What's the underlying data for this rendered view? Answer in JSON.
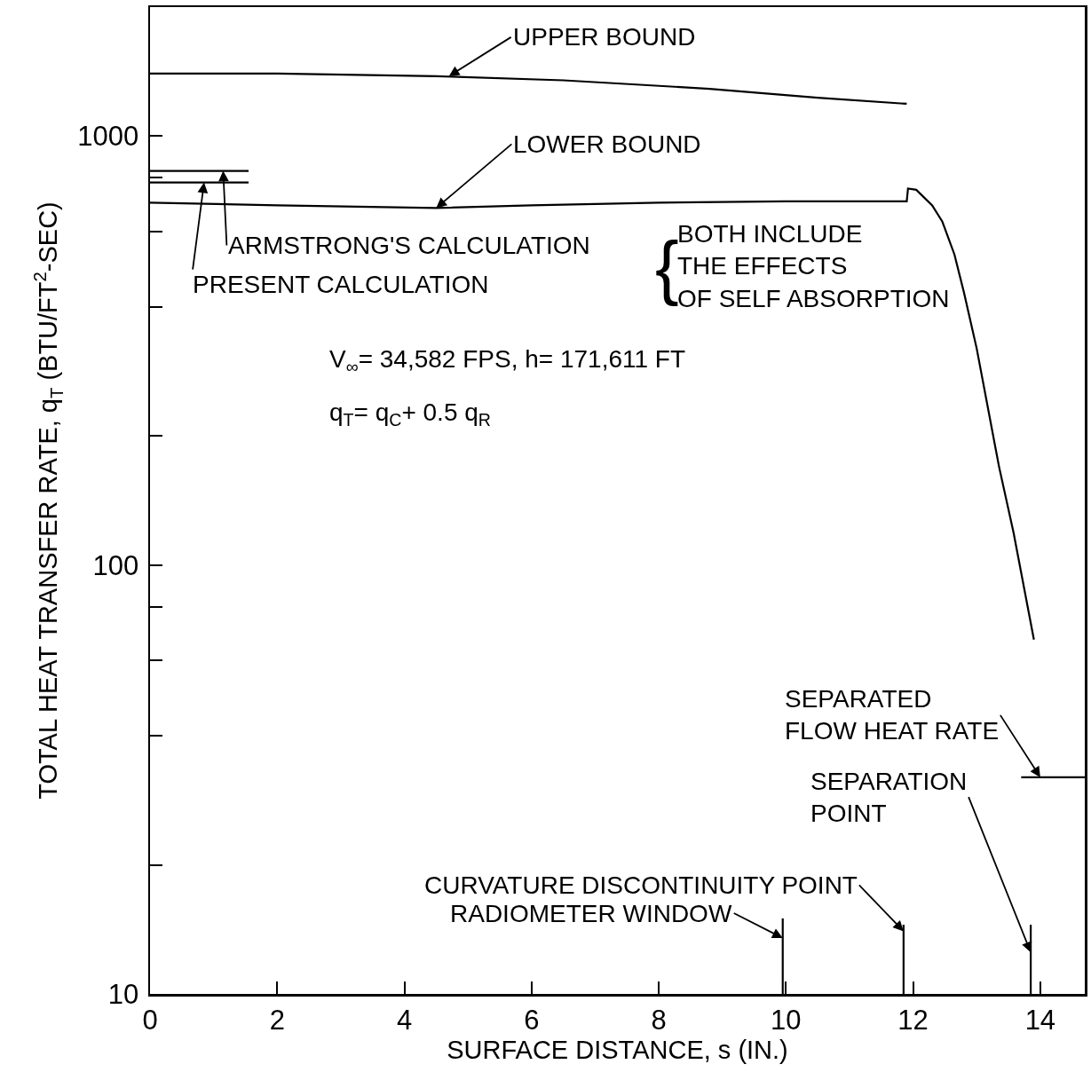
{
  "chart_data": {
    "type": "line",
    "xlabel": "SURFACE DISTANCE, s (IN.)",
    "ylabel": "TOTAL HEAT TRANSFER RATE, q$_{T}$ (BTU/FT$^{2}$-SEC)",
    "log": "y",
    "marker": "none",
    "line_style": "solid",
    "xlim": [
      0,
      14.7
    ],
    "xticks": [
      0,
      2,
      4,
      6,
      8,
      10,
      12,
      14
    ],
    "ylim": [
      10,
      2000
    ],
    "yticks": [
      10,
      {
        "value": 20,
        "label": null
      },
      {
        "value": 40,
        "label": null
      },
      {
        "value": 60,
        "label": null
      },
      {
        "value": 80,
        "label": null
      },
      100,
      {
        "value": 200,
        "label": null
      },
      {
        "value": 400,
        "label": null
      },
      {
        "value": 600,
        "label": null
      },
      {
        "value": 800,
        "label": null
      },
      1000
    ],
    "series": [
      {
        "color": "#000000",
        "x": [
          0,
          2,
          4.5,
          6.5,
          8.8,
          10.5,
          11.9
        ],
        "values": [
          1400,
          1400,
          1380,
          1350,
          1290,
          1230,
          1190
        ]
      },
      {
        "color": "#000000",
        "x": [
          0,
          2,
          4.5,
          6,
          8,
          10,
          11.9,
          11.92,
          12.05,
          12.3,
          12.46,
          12.65,
          12.8,
          13.0,
          13.15,
          13.35,
          13.58,
          13.9
        ],
        "values": [
          700,
          690,
          680,
          690,
          700,
          705,
          705,
          755,
          750,
          690,
          632,
          530,
          432,
          320,
          244,
          170,
          119,
          67
        ]
      },
      {
        "color": "#000000",
        "x": [
          0,
          1.55
        ],
        "values": [
          830,
          830
        ]
      },
      {
        "color": "#000000",
        "x": [
          0,
          1.55
        ],
        "values": [
          780,
          780
        ]
      },
      {
        "color": "#000000",
        "x": [
          13.7,
          14.7
        ],
        "values": [
          32,
          32
        ]
      },
      {
        "color": "#000000",
        "x": [
          9.95,
          9.95
        ],
        "values": [
          10,
          15
        ]
      },
      {
        "color": "#000000",
        "x": [
          11.85,
          11.85
        ],
        "values": [
          10,
          14.5
        ]
      },
      {
        "color": "#000000",
        "x": [
          13.85,
          13.85
        ],
        "values": [
          10,
          14.5
        ]
      }
    ],
    "annotations": [
      {
        "text": "UPPER BOUND",
        "x": 4.7,
        "y": 1380
      },
      {
        "text": "LOWER BOUND",
        "x": 4.5,
        "y": 680
      },
      {
        "text": "ARMSTRONG'S CALCULATION",
        "x": 1.15,
        "y": 830
      },
      {
        "text": "PRESENT CALCULATION",
        "x": 0.85,
        "y": 780
      },
      "{",
      "BOTH INCLUDE\nTHE EFFECTS\nOF SELF ABSORPTION",
      "V$_{∞}$= 34,582 FPS, h= 171,611 FT",
      "q$_{T}$= q$_{C}$+ 0.5 q$_{R}$",
      {
        "text": "SEPARATED\nFLOW HEAT RATE",
        "x": 14.0,
        "y": 32
      },
      {
        "text": "SEPARATION\nPOINT",
        "x": 13.85,
        "y": 12.5
      },
      {
        "text": "CURVATURE DISCONTINUITY POINT",
        "x": 11.85,
        "y": 14
      },
      {
        "text": "RADIOMETER WINDOW",
        "x": 9.95,
        "y": 13.5
      }
    ]
  }
}
